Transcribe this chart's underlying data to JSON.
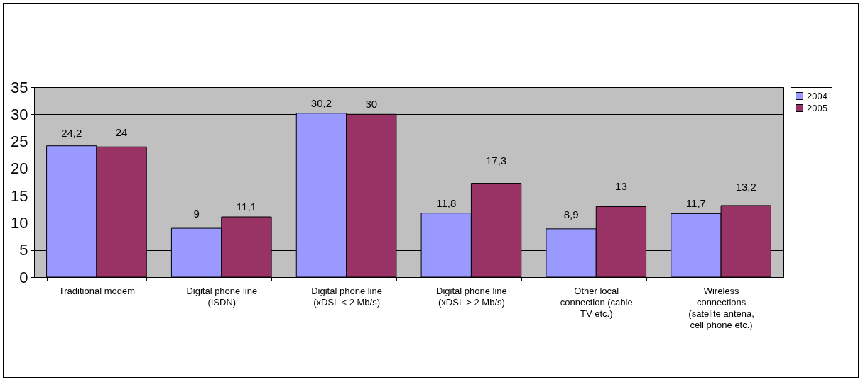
{
  "chart_data": {
    "type": "bar",
    "categories": [
      "Traditional modem",
      "Digital phone line (ISDN)",
      "Digital phone line (xDSL < 2 Mb/s)",
      "Digital phone line (xDSL > 2 Mb/s)",
      "Other local connection (cable TV etc.)",
      "Wireless connections (satelite antena, cell phone etc.)"
    ],
    "series": [
      {
        "name": "2004",
        "color": "#9999ff",
        "values": [
          24.2,
          9,
          30.2,
          11.8,
          8.9,
          11.7
        ],
        "value_labels": [
          "24,2",
          "9",
          "30,2",
          "11,8",
          "8,9",
          "11,7"
        ]
      },
      {
        "name": "2005",
        "color": "#993366",
        "values": [
          24,
          11.1,
          30,
          17.3,
          13,
          13.2
        ],
        "value_labels": [
          "24",
          "11,1",
          "30",
          "17,3",
          "13",
          "13,2"
        ]
      }
    ],
    "ylim": [
      0,
      35
    ],
    "yticks": [
      0,
      5,
      10,
      15,
      20,
      25,
      30,
      35
    ],
    "grid": "y",
    "legend": "right"
  }
}
